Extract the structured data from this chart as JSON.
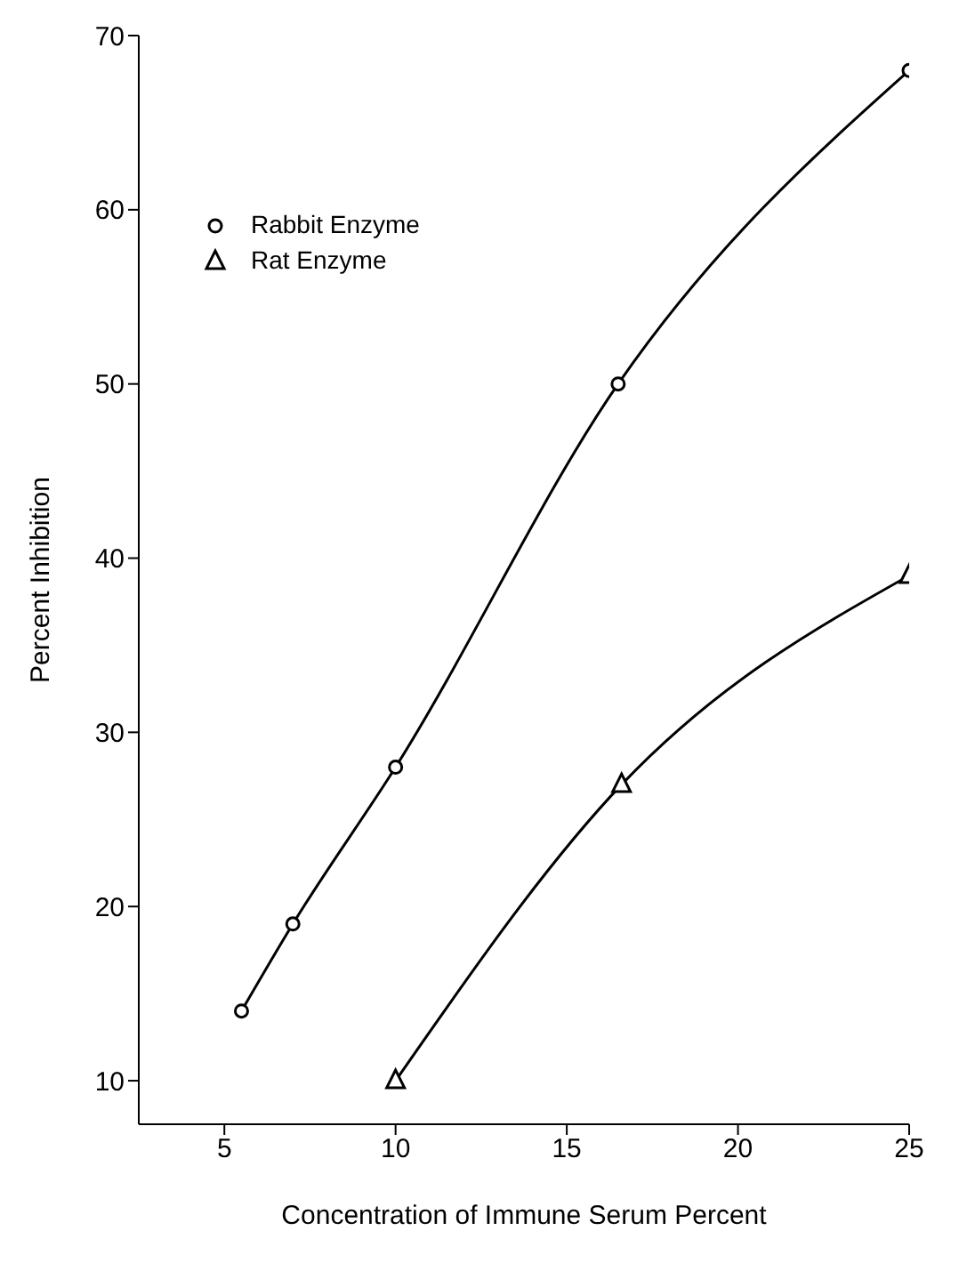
{
  "chart_data": {
    "type": "line",
    "xlabel": "Concentration of Immune Serum Percent",
    "ylabel": "Percent Inhibition",
    "xlim": [
      2.5,
      25
    ],
    "xticks": [
      5,
      10,
      15,
      20,
      25
    ],
    "ylim": [
      7.5,
      70
    ],
    "yticks": [
      10,
      20,
      30,
      40,
      50,
      60,
      70
    ],
    "series": [
      {
        "name": "Rabbit Enzyme",
        "color": "#000000",
        "marker": "circle",
        "x": [
          5.5,
          7,
          10,
          16.5,
          25
        ],
        "values": [
          14,
          19,
          28,
          50,
          68
        ]
      },
      {
        "name": "Rat Enzyme",
        "color": "#000000",
        "marker": "triangle",
        "x": [
          10,
          16.6,
          25
        ],
        "values": [
          10,
          27,
          39
        ]
      }
    ],
    "legend": "top left",
    "grid": false,
    "line_style": "solid"
  }
}
